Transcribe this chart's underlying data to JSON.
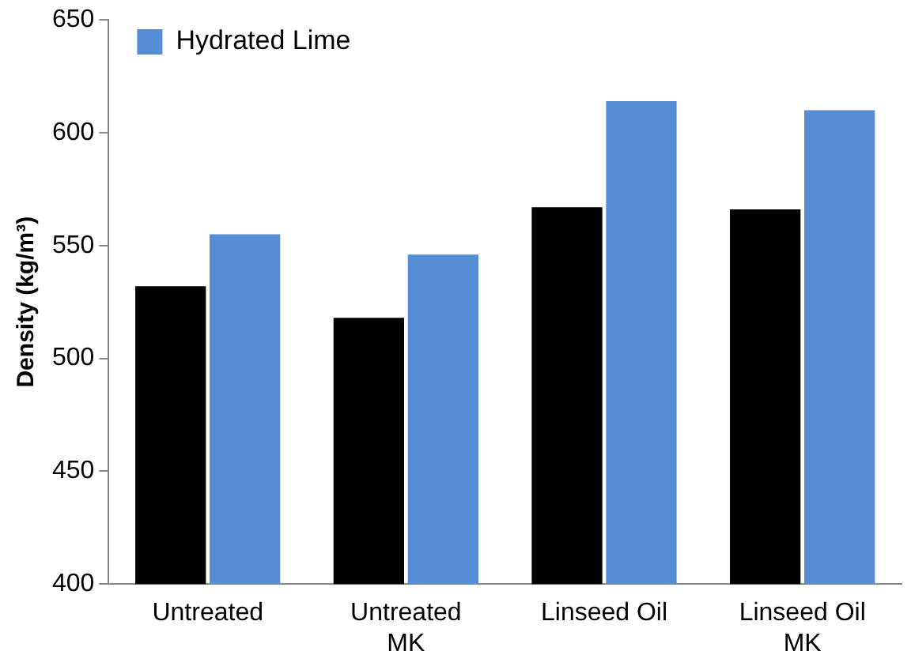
{
  "chart_data": {
    "type": "bar",
    "ylabel": "Density (kg/m³)",
    "categories": [
      "Untreated",
      "Untreated MK",
      "Linseed Oil",
      "Linseed Oil MK"
    ],
    "series": [
      {
        "color": "#000000",
        "values": [
          532,
          518,
          567,
          566
        ]
      },
      {
        "name": "Hydrated Lime",
        "color": "#558ed5",
        "values": [
          555,
          546,
          614,
          610
        ]
      }
    ],
    "ylim": [
      400,
      650
    ],
    "yticks": [
      400,
      450,
      500,
      550,
      600,
      650
    ],
    "grid": false,
    "legend": "top left"
  }
}
